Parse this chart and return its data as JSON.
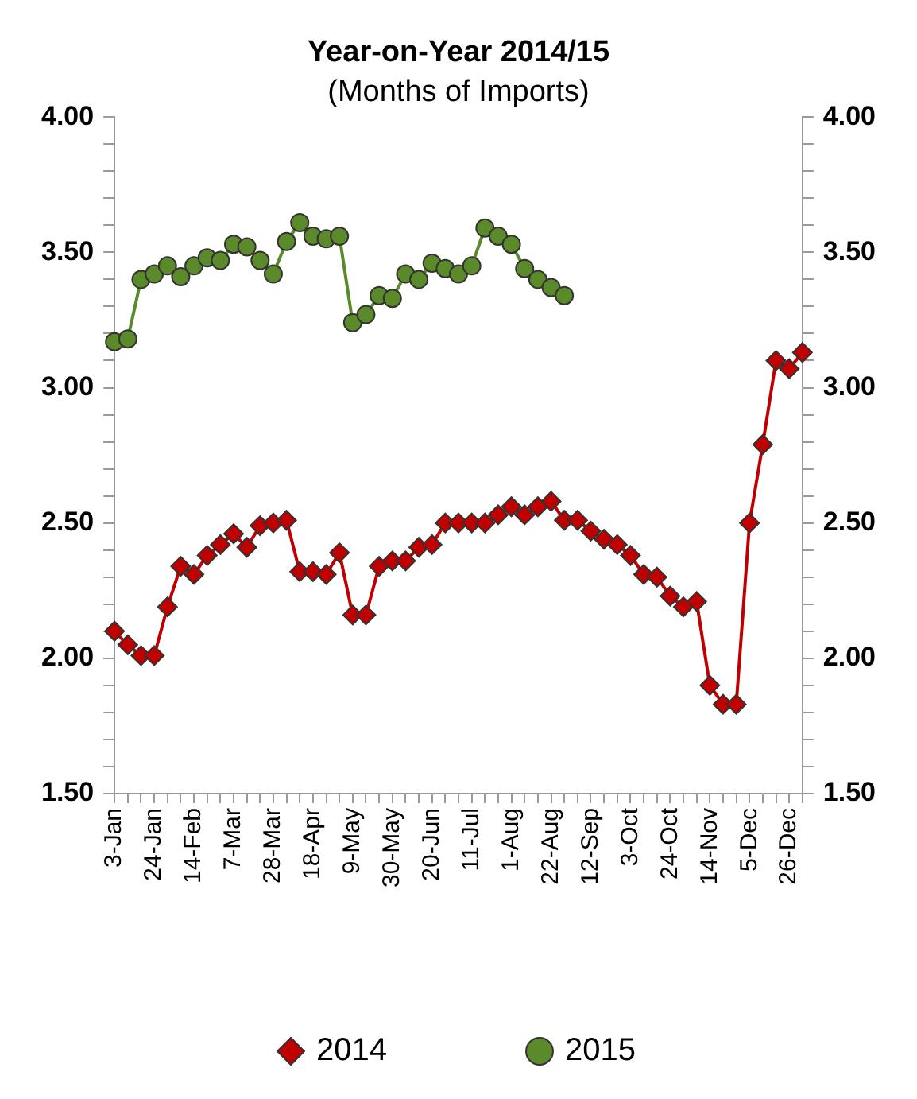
{
  "chart_data": {
    "type": "line",
    "title": "Year-on-Year 2014/15",
    "subtitle": "(Months of Imports)",
    "categories": [
      "3-Jan",
      null,
      null,
      "24-Jan",
      null,
      null,
      "14-Feb",
      null,
      null,
      "7-Mar",
      null,
      null,
      "28-Mar",
      null,
      null,
      "18-Apr",
      null,
      null,
      "9-May",
      null,
      null,
      "30-May",
      null,
      null,
      "20-Jun",
      null,
      null,
      "11-Jul",
      null,
      null,
      "1-Aug",
      null,
      null,
      "22-Aug",
      null,
      null,
      "12-Sep",
      null,
      null,
      "3-Oct",
      null,
      null,
      "24-Oct",
      null,
      null,
      "14-Nov",
      null,
      null,
      "5-Dec",
      null,
      null,
      "26-Dec",
      null
    ],
    "series": [
      {
        "name": "2014",
        "color": "#c00000",
        "marker": "diamond",
        "values": [
          2.1,
          2.05,
          2.01,
          2.01,
          2.19,
          2.34,
          2.31,
          2.38,
          2.42,
          2.46,
          2.41,
          2.49,
          2.5,
          2.51,
          2.32,
          2.32,
          2.31,
          2.39,
          2.16,
          2.16,
          2.34,
          2.36,
          2.36,
          2.41,
          2.42,
          2.5,
          2.5,
          2.5,
          2.5,
          2.53,
          2.56,
          2.53,
          2.56,
          2.58,
          2.51,
          2.51,
          2.47,
          2.44,
          2.42,
          2.38,
          2.31,
          2.3,
          2.23,
          2.19,
          2.21,
          1.9,
          1.83,
          1.83,
          2.5,
          2.79,
          3.1,
          3.07,
          3.13
        ]
      },
      {
        "name": "2015",
        "color": "#5a8a2a",
        "marker": "circle",
        "values": [
          3.17,
          3.18,
          3.4,
          3.42,
          3.45,
          3.41,
          3.45,
          3.48,
          3.47,
          3.53,
          3.52,
          3.47,
          3.42,
          3.54,
          3.61,
          3.56,
          3.55,
          3.56,
          3.24,
          3.27,
          3.34,
          3.33,
          3.42,
          3.4,
          3.46,
          3.44,
          3.42,
          3.45,
          3.59,
          3.56,
          3.53,
          3.44,
          3.4,
          3.37,
          3.34,
          null,
          null,
          null,
          null,
          null,
          null,
          null,
          null,
          null,
          null,
          null,
          null,
          null,
          null,
          null,
          null,
          null,
          null
        ]
      }
    ],
    "ylim": [
      1.5,
      4
    ],
    "yticks": [
      {
        "value": 1.5,
        "label": "1.50"
      },
      {
        "value": 1.6,
        "label": null
      },
      {
        "value": 1.7,
        "label": null
      },
      {
        "value": 1.8,
        "label": null
      },
      {
        "value": 1.9,
        "label": null
      },
      {
        "value": 2,
        "label": "2.00"
      },
      {
        "value": 2.1,
        "label": null
      },
      {
        "value": 2.2,
        "label": null
      },
      {
        "value": 2.3,
        "label": null
      },
      {
        "value": 2.4,
        "label": null
      },
      {
        "value": 2.5,
        "label": "2.50"
      },
      {
        "value": 2.6,
        "label": null
      },
      {
        "value": 2.7,
        "label": null
      },
      {
        "value": 2.8,
        "label": null
      },
      {
        "value": 2.9,
        "label": null
      },
      {
        "value": 3,
        "label": "3.00"
      },
      {
        "value": 3.1,
        "label": null
      },
      {
        "value": 3.2,
        "label": null
      },
      {
        "value": 3.3,
        "label": null
      },
      {
        "value": 3.4,
        "label": null
      },
      {
        "value": 3.5,
        "label": "3.50"
      },
      {
        "value": 3.6,
        "label": null
      },
      {
        "value": 3.7,
        "label": null
      },
      {
        "value": 3.8,
        "label": null
      },
      {
        "value": 3.9,
        "label": null
      },
      {
        "value": 4,
        "label": "4.00"
      }
    ],
    "y2lim": [
      1.5,
      4
    ],
    "y2ticks": [
      {
        "value": 1.5,
        "label": "1.50"
      },
      {
        "value": 1.6,
        "label": null
      },
      {
        "value": 1.7,
        "label": null
      },
      {
        "value": 1.8,
        "label": null
      },
      {
        "value": 1.9,
        "label": null
      },
      {
        "value": 2,
        "label": "2.00"
      },
      {
        "value": 2.1,
        "label": null
      },
      {
        "value": 2.2,
        "label": null
      },
      {
        "value": 2.3,
        "label": null
      },
      {
        "value": 2.4,
        "label": null
      },
      {
        "value": 2.5,
        "label": "2.50"
      },
      {
        "value": 2.6,
        "label": null
      },
      {
        "value": 2.7,
        "label": null
      },
      {
        "value": 2.8,
        "label": null
      },
      {
        "value": 2.9,
        "label": null
      },
      {
        "value": 3,
        "label": "3.00"
      },
      {
        "value": 3.1,
        "label": null
      },
      {
        "value": 3.2,
        "label": null
      },
      {
        "value": 3.3,
        "label": null
      },
      {
        "value": 3.4,
        "label": null
      },
      {
        "value": 3.5,
        "label": "3.50"
      },
      {
        "value": 3.6,
        "label": null
      },
      {
        "value": 3.7,
        "label": null
      },
      {
        "value": 3.8,
        "label": null
      },
      {
        "value": 3.9,
        "label": null
      },
      {
        "value": 4,
        "label": "4.00"
      }
    ],
    "grid": false,
    "legend": "bottom",
    "line_style": "solid"
  }
}
